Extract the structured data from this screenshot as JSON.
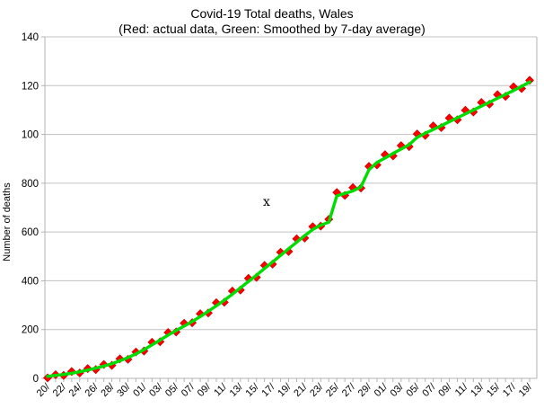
{
  "header": {
    "title": "Covid-19 Total deaths, Wales",
    "subtitle": "(Red: actual data, Green: Smoothed by 7-day average)"
  },
  "annotation_text": "x",
  "chart_data": {
    "type": "line",
    "title": "Covid-19 Total deaths, Wales",
    "subtitle": "(Red: actual data, Green: Smoothed by 7-day average)",
    "xlabel": "",
    "ylabel": "Number of deaths",
    "grid": "horizontal",
    "legend_position": "none (colors explained in subtitle)",
    "ylim": [
      0,
      1400
    ],
    "days": 61,
    "x_tick_labels_every_2_days": [
      "20/",
      "22/",
      "24/",
      "26/",
      "28/",
      "30/",
      "01/",
      "03/",
      "05/",
      "07/",
      "09/",
      "11/",
      "13/",
      "15/",
      "17/",
      "19/",
      "21/",
      "23/",
      "25/",
      "27/",
      "29/",
      "01/",
      "03/",
      "05/",
      "07/",
      "09/",
      "11/",
      "13/",
      "15/",
      "17/",
      "19/"
    ],
    "y_ticks": [
      {
        "value": 0,
        "label": "0"
      },
      {
        "value": 200,
        "label": "200"
      },
      {
        "value": 400,
        "label": "400"
      },
      {
        "value": 600,
        "label": "600"
      },
      {
        "value": 800,
        "label": "800"
      },
      {
        "value": 1000,
        "label": "100"
      },
      {
        "value": 1200,
        "label": "120"
      },
      {
        "value": 1400,
        "label": "140"
      }
    ],
    "annotation": {
      "text": "x",
      "approx_value": 711,
      "approx_day_index": 27
    },
    "series": [
      {
        "name": "actual",
        "legend_hint": "Red: actual data",
        "color": "#ff0000",
        "marker": "diamond",
        "line": false,
        "values": [
          2,
          15,
          12,
          28,
          22,
          40,
          36,
          57,
          53,
          80,
          78,
          108,
          112,
          148,
          150,
          188,
          190,
          226,
          228,
          265,
          268,
          310,
          312,
          358,
          362,
          410,
          414,
          463,
          468,
          517,
          520,
          572,
          575,
          622,
          624,
          652,
          762,
          750,
          782,
          780,
          869,
          875,
          917,
          912,
          954,
          950,
          1002,
          996,
          1035,
          1028,
          1067,
          1060,
          1099,
          1092,
          1131,
          1124,
          1163,
          1156,
          1195,
          1188,
          1222
        ]
      },
      {
        "name": "smoothed-7day",
        "legend_hint": "Green: Smoothed by 7-day average",
        "color": "#00dc00",
        "marker": "none",
        "line": true,
        "values": [
          8,
          12,
          16,
          21,
          27,
          34,
          42,
          50,
          60,
          72,
          85,
          100,
          118,
          137,
          157,
          177,
          196,
          214,
          233,
          253,
          275,
          297,
          320,
          345,
          371,
          397,
          423,
          450,
          477,
          504,
          531,
          558,
          585,
          610,
          628,
          640,
          748,
          758,
          768,
          785,
          855,
          885,
          903,
          922,
          940,
          958,
          988,
          1005,
          1020,
          1036,
          1052,
          1068,
          1084,
          1100,
          1116,
          1132,
          1148,
          1164,
          1180,
          1197,
          1215
        ]
      }
    ],
    "colors": {
      "actual": "#ff0000",
      "actual_edge": "#cc0000",
      "smoothed": "#00dc00",
      "grid": "#c0c0c0",
      "axis": "#b3b3b3",
      "text": "#000000",
      "background": "#ffffff"
    }
  }
}
